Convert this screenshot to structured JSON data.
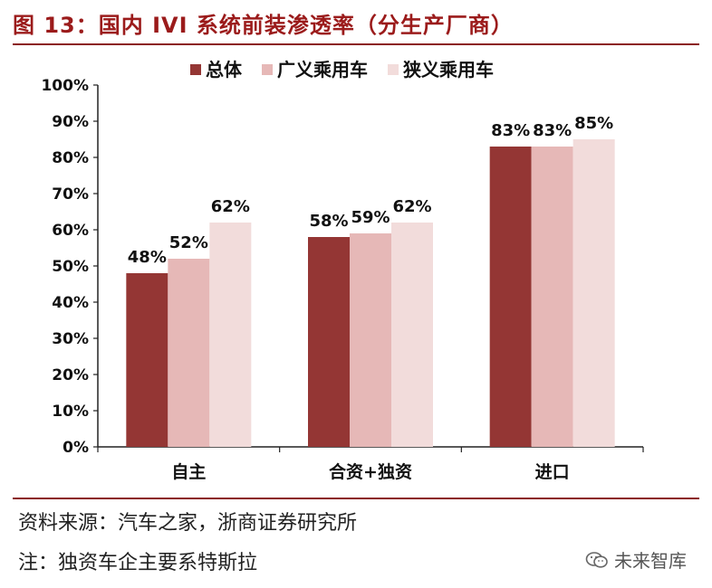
{
  "header": {
    "title": "图 13：国内 IVI 系统前装渗透率（分生产厂商）"
  },
  "footer": {
    "source": "资料来源：汽车之家，浙商证券研究所",
    "note": "注：独资车企主要系特斯拉",
    "watermark": "未来智库"
  },
  "chart_data": {
    "type": "bar",
    "categories": [
      "自主",
      "合资+独资",
      "进口"
    ],
    "series": [
      {
        "name": "总体",
        "values": [
          48,
          58,
          83
        ],
        "labels": [
          "48%",
          "58%",
          "83%"
        ],
        "color": "#943634"
      },
      {
        "name": "广义乘用车",
        "values": [
          52,
          59,
          83
        ],
        "labels": [
          "52%",
          "59%",
          "83%"
        ],
        "color": "#e6b8b7"
      },
      {
        "name": "狭义乘用车",
        "values": [
          62,
          62,
          85
        ],
        "labels": [
          "62%",
          "62%",
          "85%"
        ],
        "color": "#f2dcdb"
      }
    ],
    "yticks": [
      "0%",
      "10%",
      "20%",
      "30%",
      "40%",
      "50%",
      "60%",
      "70%",
      "80%",
      "90%",
      "100%"
    ],
    "ylim": [
      0,
      100
    ],
    "legend": "top",
    "grid": false
  }
}
